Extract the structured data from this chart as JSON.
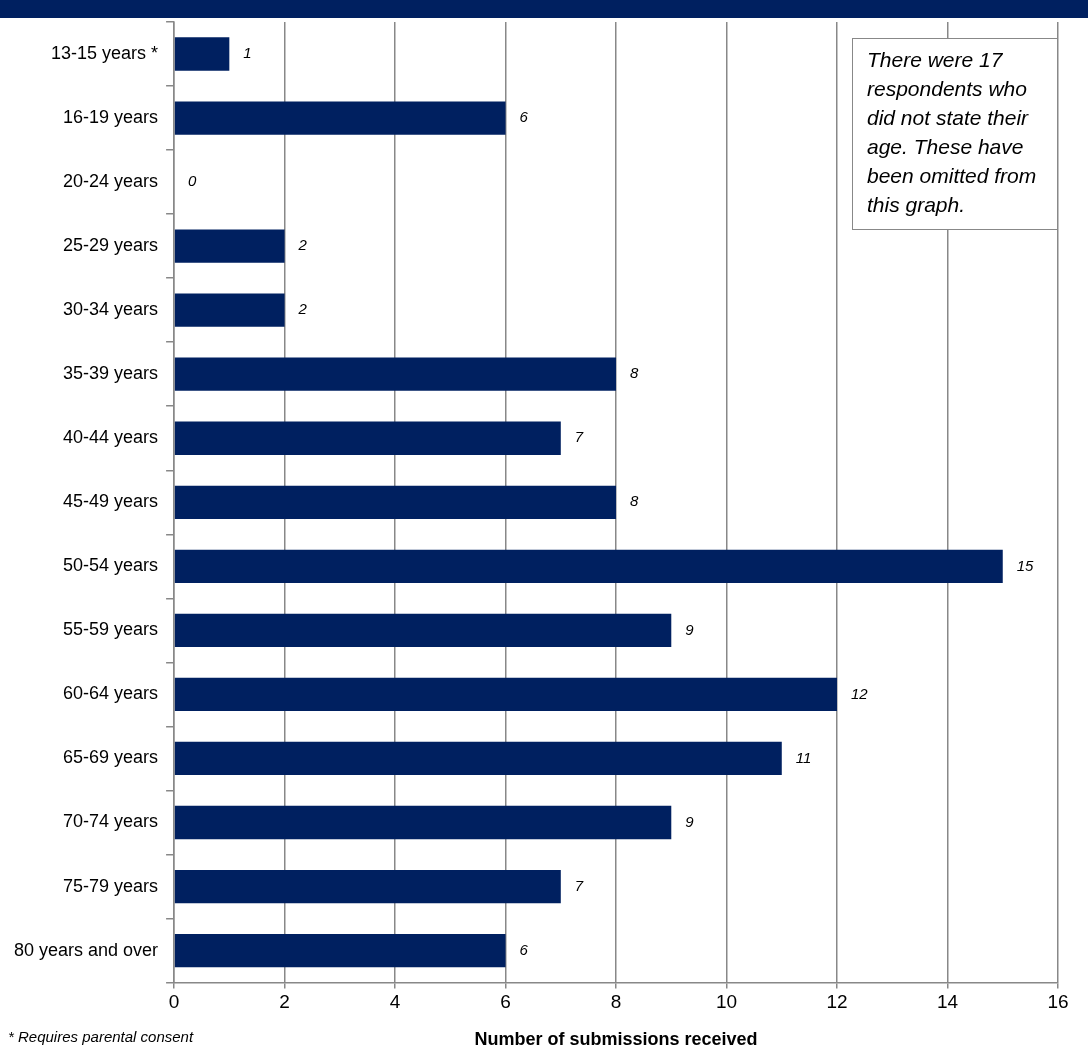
{
  "chart_data": {
    "type": "bar",
    "orientation": "horizontal",
    "categories": [
      "13-15 years *",
      "16-19 years",
      "20-24 years",
      "25-29 years",
      "30-34 years",
      "35-39 years",
      "40-44 years",
      "45-49 years",
      "50-54 years",
      "55-59 years",
      "60-64 years",
      "65-69 years",
      "70-74 years",
      "75-79 years",
      "80 years and over"
    ],
    "values": [
      1,
      6,
      0,
      2,
      2,
      8,
      7,
      8,
      15,
      9,
      12,
      11,
      9,
      7,
      6
    ],
    "color": "#002060",
    "xlim": [
      0,
      16
    ],
    "xticks": [
      0,
      2,
      4,
      6,
      8,
      10,
      12,
      14,
      16
    ],
    "xlabel": "Number of submissions received",
    "grid": "x",
    "legend": false,
    "data_labels": true,
    "annotations": [
      "There were 17 respondents who did not state their age. These have been omitted from this graph.",
      "* Requires parental consent"
    ]
  }
}
